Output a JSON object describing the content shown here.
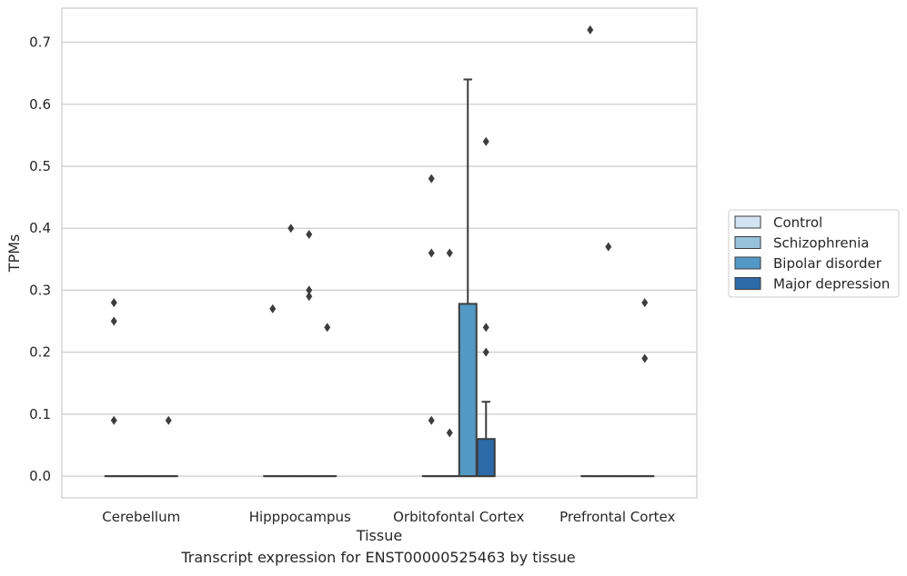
{
  "caption": "Transcript expression for ENST00000525463 by tissue",
  "chart_data": {
    "type": "box",
    "xlabel": "Tissue",
    "ylabel": "TPMs",
    "ylim": [
      -0.035,
      0.755
    ],
    "yticks": [
      0.0,
      0.1,
      0.2,
      0.3,
      0.4,
      0.5,
      0.6,
      0.7
    ],
    "ytick_labels": [
      "0.0",
      "0.1",
      "0.2",
      "0.3",
      "0.4",
      "0.5",
      "0.6",
      "0.7"
    ],
    "grid": true,
    "legend_position": "right",
    "categories": [
      "Cerebellum",
      "Hipppocampus",
      "Orbitofontal Cortex",
      "Prefrontal Cortex"
    ],
    "series": [
      {
        "name": "Control",
        "color": "#d3e3f1"
      },
      {
        "name": "Schizophrenia",
        "color": "#98c1dc"
      },
      {
        "name": "Bipolar disorder",
        "color": "#5399c6"
      },
      {
        "name": "Major depression",
        "color": "#2c6aa8"
      }
    ],
    "boxes": [
      {
        "category": "Cerebellum",
        "series": "Control",
        "q1": 0,
        "median": 0,
        "q3": 0,
        "whisker_low": 0,
        "whisker_high": 0,
        "outliers": [
          0.28,
          0.25,
          0.09
        ]
      },
      {
        "category": "Cerebellum",
        "series": "Schizophrenia",
        "q1": 0,
        "median": 0,
        "q3": 0,
        "whisker_low": 0,
        "whisker_high": 0,
        "outliers": []
      },
      {
        "category": "Cerebellum",
        "series": "Bipolar disorder",
        "q1": 0,
        "median": 0,
        "q3": 0,
        "whisker_low": 0,
        "whisker_high": 0,
        "outliers": []
      },
      {
        "category": "Cerebellum",
        "series": "Major depression",
        "q1": 0,
        "median": 0,
        "q3": 0,
        "whisker_low": 0,
        "whisker_high": 0,
        "outliers": [
          0.09
        ]
      },
      {
        "category": "Hipppocampus",
        "series": "Control",
        "q1": 0,
        "median": 0,
        "q3": 0,
        "whisker_low": 0,
        "whisker_high": 0,
        "outliers": [
          0.27
        ]
      },
      {
        "category": "Hipppocampus",
        "series": "Schizophrenia",
        "q1": 0,
        "median": 0,
        "q3": 0,
        "whisker_low": 0,
        "whisker_high": 0,
        "outliers": [
          0.4
        ]
      },
      {
        "category": "Hipppocampus",
        "series": "Bipolar disorder",
        "q1": 0,
        "median": 0,
        "q3": 0,
        "whisker_low": 0,
        "whisker_high": 0,
        "outliers": [
          0.39,
          0.3,
          0.29
        ]
      },
      {
        "category": "Hipppocampus",
        "series": "Major depression",
        "q1": 0,
        "median": 0,
        "q3": 0,
        "whisker_low": 0,
        "whisker_high": 0,
        "outliers": [
          0.24
        ]
      },
      {
        "category": "Orbitofontal Cortex",
        "series": "Control",
        "q1": 0,
        "median": 0,
        "q3": 0,
        "whisker_low": 0,
        "whisker_high": 0,
        "outliers": [
          0.48,
          0.36,
          0.09
        ]
      },
      {
        "category": "Orbitofontal Cortex",
        "series": "Schizophrenia",
        "q1": 0,
        "median": 0,
        "q3": 0,
        "whisker_low": 0,
        "whisker_high": 0,
        "outliers": [
          0.36,
          0.07
        ]
      },
      {
        "category": "Orbitofontal Cortex",
        "series": "Bipolar disorder",
        "q1": 0,
        "median": 0,
        "q3": 0.278,
        "whisker_low": 0,
        "whisker_high": 0.64,
        "outliers": []
      },
      {
        "category": "Orbitofontal Cortex",
        "series": "Major depression",
        "q1": 0,
        "median": 0,
        "q3": 0.06,
        "whisker_low": 0,
        "whisker_high": 0.12,
        "outliers": [
          0.54,
          0.24,
          0.2
        ]
      },
      {
        "category": "Prefrontal Cortex",
        "series": "Control",
        "q1": 0,
        "median": 0,
        "q3": 0,
        "whisker_low": 0,
        "whisker_high": 0,
        "outliers": [
          0.72
        ]
      },
      {
        "category": "Prefrontal Cortex",
        "series": "Schizophrenia",
        "q1": 0,
        "median": 0,
        "q3": 0,
        "whisker_low": 0,
        "whisker_high": 0,
        "outliers": [
          0.37
        ]
      },
      {
        "category": "Prefrontal Cortex",
        "series": "Bipolar disorder",
        "q1": 0,
        "median": 0,
        "q3": 0,
        "whisker_low": 0,
        "whisker_high": 0,
        "outliers": []
      },
      {
        "category": "Prefrontal Cortex",
        "series": "Major depression",
        "q1": 0,
        "median": 0,
        "q3": 0,
        "whisker_low": 0,
        "whisker_high": 0,
        "outliers": [
          0.28,
          0.19
        ]
      }
    ]
  }
}
